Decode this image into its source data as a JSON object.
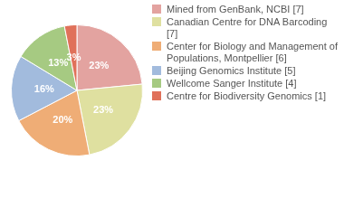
{
  "chart_data": {
    "type": "pie",
    "categories": [
      "Mined from GenBank, NCBI [7]",
      "Canadian Centre for DNA Barcoding [7]",
      "Center for Biology and Management of Populations, Montpellier [6]",
      "Beijing Genomics Institute [5]",
      "Wellcome Sanger Institute [4]",
      "Centre for Biodiversity Genomics [1]"
    ],
    "values": [
      23,
      23,
      20,
      16,
      13,
      3
    ],
    "value_labels": [
      "23%",
      "23%",
      "20%",
      "16%",
      "13%",
      "3%"
    ],
    "colors": [
      "#e3a3a0",
      "#dfe0a0",
      "#efad76",
      "#a2bbdd",
      "#a6ca82",
      "#e0715a"
    ],
    "data_labels": true,
    "legend": "right"
  }
}
